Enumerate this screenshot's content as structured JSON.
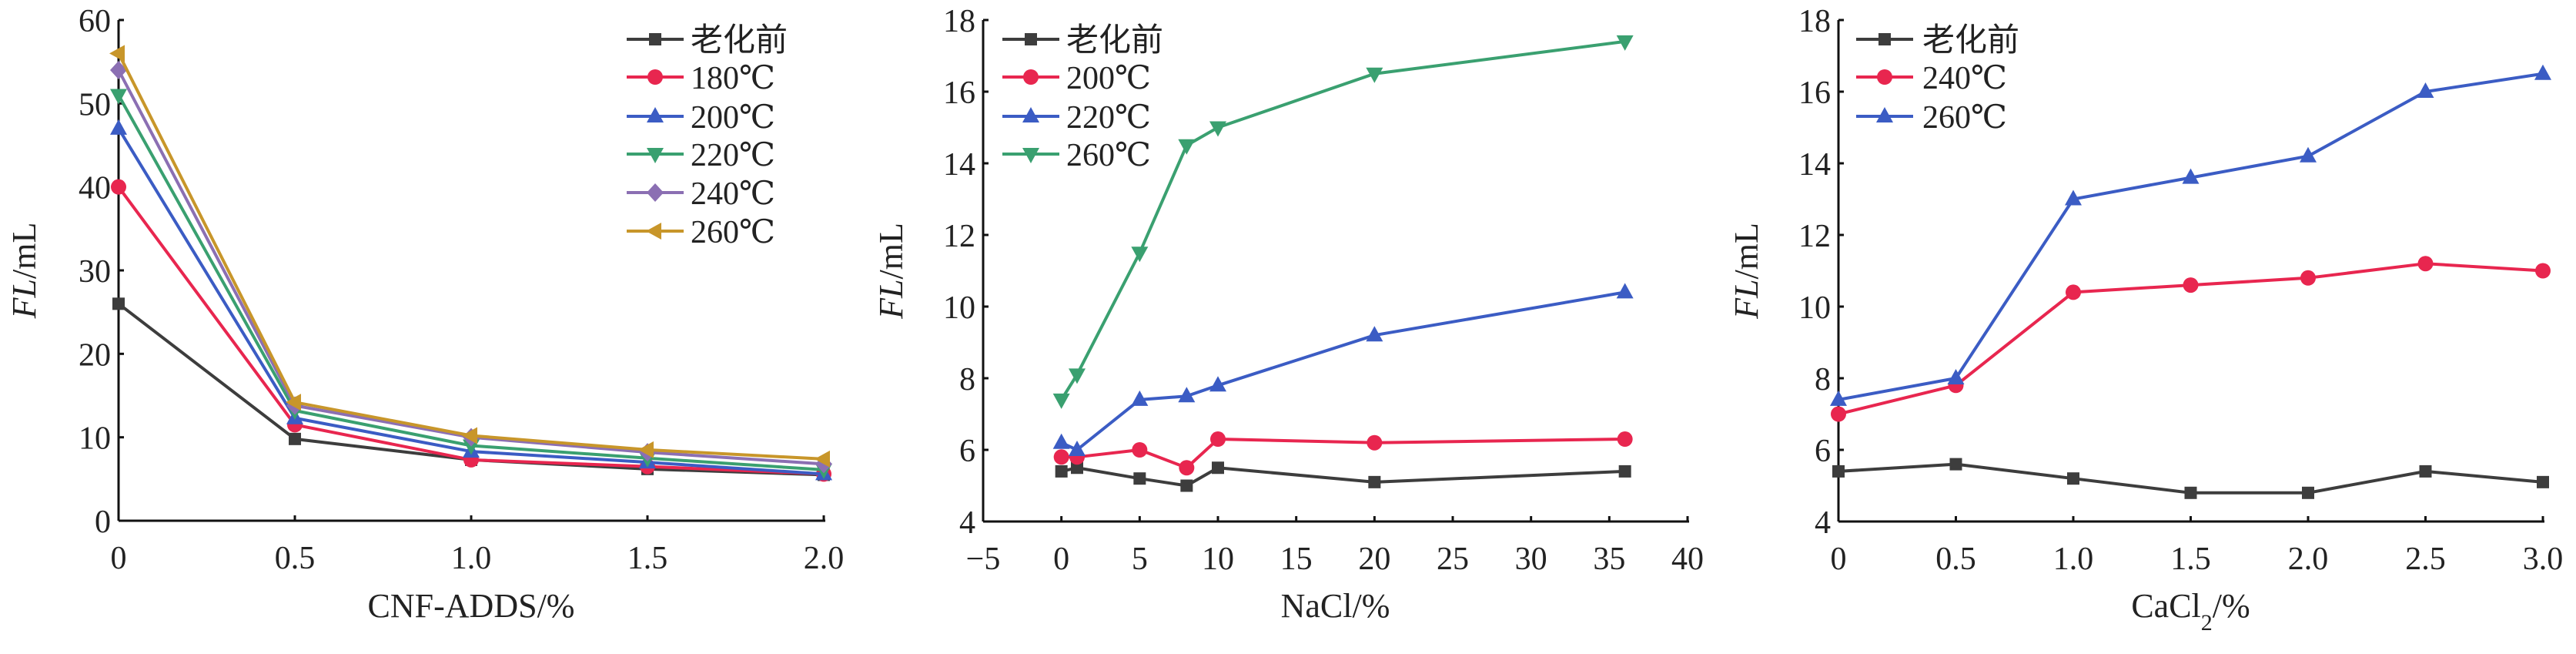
{
  "chart_data": [
    {
      "type": "line",
      "xlabel": "CNF-ADDS/%",
      "ylabel_italic": "FL",
      "ylabel_rest": "/mL",
      "xlim": [
        0,
        2.0
      ],
      "ylim": [
        0,
        60
      ],
      "xticks": [
        0,
        0.5,
        1.0,
        1.5,
        2.0
      ],
      "xtick_labels": [
        "0",
        "0.5",
        "1.0",
        "1.5",
        "2.0"
      ],
      "yticks": [
        0,
        10,
        20,
        30,
        40,
        50,
        60
      ],
      "ytick_labels": [
        "0",
        "10",
        "20",
        "30",
        "40",
        "50",
        "60"
      ],
      "legend_position": "top-right",
      "x": [
        0,
        0.5,
        1.0,
        1.5,
        2.0
      ],
      "series": [
        {
          "name": "老化前",
          "marker": "square",
          "color": "#3d3d3d",
          "values": [
            26,
            9.8,
            7.3,
            6.2,
            5.5
          ]
        },
        {
          "name": "180℃",
          "marker": "circle",
          "color": "#e8264f",
          "values": [
            40,
            11.5,
            7.3,
            6.5,
            5.6
          ]
        },
        {
          "name": "200℃",
          "marker": "triangle-up",
          "color": "#3b5cc4",
          "values": [
            47,
            12.3,
            8.3,
            7.0,
            5.6
          ]
        },
        {
          "name": "220℃",
          "marker": "triangle-down",
          "color": "#3aa070",
          "values": [
            51,
            13.2,
            9.0,
            7.5,
            6.1
          ]
        },
        {
          "name": "240℃",
          "marker": "diamond",
          "color": "#8b6fb3",
          "values": [
            54,
            13.8,
            10.0,
            8.2,
            6.8
          ]
        },
        {
          "name": "260℃",
          "marker": "triangle-left",
          "color": "#c8962a",
          "values": [
            56,
            14.2,
            10.2,
            8.5,
            7.4
          ]
        }
      ]
    },
    {
      "type": "line",
      "xlabel": "NaCl/%",
      "ylabel_italic": "FL",
      "ylabel_rest": "/mL",
      "xlim": [
        -5,
        40
      ],
      "ylim": [
        4,
        18
      ],
      "xticks": [
        -5,
        0,
        5,
        10,
        15,
        20,
        25,
        30,
        35,
        40
      ],
      "xtick_labels": [
        "−5",
        "0",
        "5",
        "10",
        "15",
        "20",
        "25",
        "30",
        "35",
        "40"
      ],
      "yticks": [
        4,
        6,
        8,
        10,
        12,
        14,
        16,
        18
      ],
      "ytick_labels": [
        "4",
        "6",
        "8",
        "10",
        "12",
        "14",
        "16",
        "18"
      ],
      "legend_position": "top-left",
      "x": [
        0,
        1,
        5,
        8,
        10,
        20,
        36
      ],
      "series": [
        {
          "name": "老化前",
          "marker": "square",
          "color": "#3d3d3d",
          "values": [
            5.4,
            5.5,
            5.2,
            5.0,
            5.5,
            5.1,
            5.4
          ]
        },
        {
          "name": "200℃",
          "marker": "circle",
          "color": "#e8264f",
          "values": [
            5.8,
            5.8,
            6.0,
            5.5,
            6.3,
            6.2,
            6.3
          ]
        },
        {
          "name": "220℃",
          "marker": "triangle-up",
          "color": "#3b5cc4",
          "values": [
            6.2,
            6.0,
            7.4,
            7.5,
            7.8,
            9.2,
            10.4
          ]
        },
        {
          "name": "260℃",
          "marker": "triangle-down",
          "color": "#3aa070",
          "values": [
            7.4,
            8.1,
            11.5,
            14.5,
            15.0,
            16.5,
            17.4
          ]
        }
      ]
    },
    {
      "type": "line",
      "xlabel": "CaCl",
      "xlabel_sub": "2",
      "xlabel_tail": "/%",
      "ylabel_italic": "FL",
      "ylabel_rest": "/mL",
      "xlim": [
        0,
        3.0
      ],
      "ylim": [
        4,
        18
      ],
      "xticks": [
        0,
        0.5,
        1.0,
        1.5,
        2.0,
        2.5,
        3.0
      ],
      "xtick_labels": [
        "0",
        "0.5",
        "1.0",
        "1.5",
        "2.0",
        "2.5",
        "3.0"
      ],
      "yticks": [
        4,
        6,
        8,
        10,
        12,
        14,
        16,
        18
      ],
      "ytick_labels": [
        "4",
        "6",
        "8",
        "10",
        "12",
        "14",
        "16",
        "18"
      ],
      "legend_position": "top-left",
      "x": [
        0,
        0.5,
        1.0,
        1.5,
        2.0,
        2.5,
        3.0
      ],
      "series": [
        {
          "name": "老化前",
          "marker": "square",
          "color": "#3d3d3d",
          "values": [
            5.4,
            5.6,
            5.2,
            4.8,
            4.8,
            5.4,
            5.1
          ]
        },
        {
          "name": "240℃",
          "marker": "circle",
          "color": "#e8264f",
          "values": [
            7.0,
            7.8,
            10.4,
            10.6,
            10.8,
            11.2,
            11.0
          ]
        },
        {
          "name": "260℃",
          "marker": "triangle-up",
          "color": "#3b5cc4",
          "values": [
            7.4,
            8.0,
            13.0,
            13.6,
            14.2,
            16.0,
            16.5
          ]
        }
      ]
    }
  ]
}
